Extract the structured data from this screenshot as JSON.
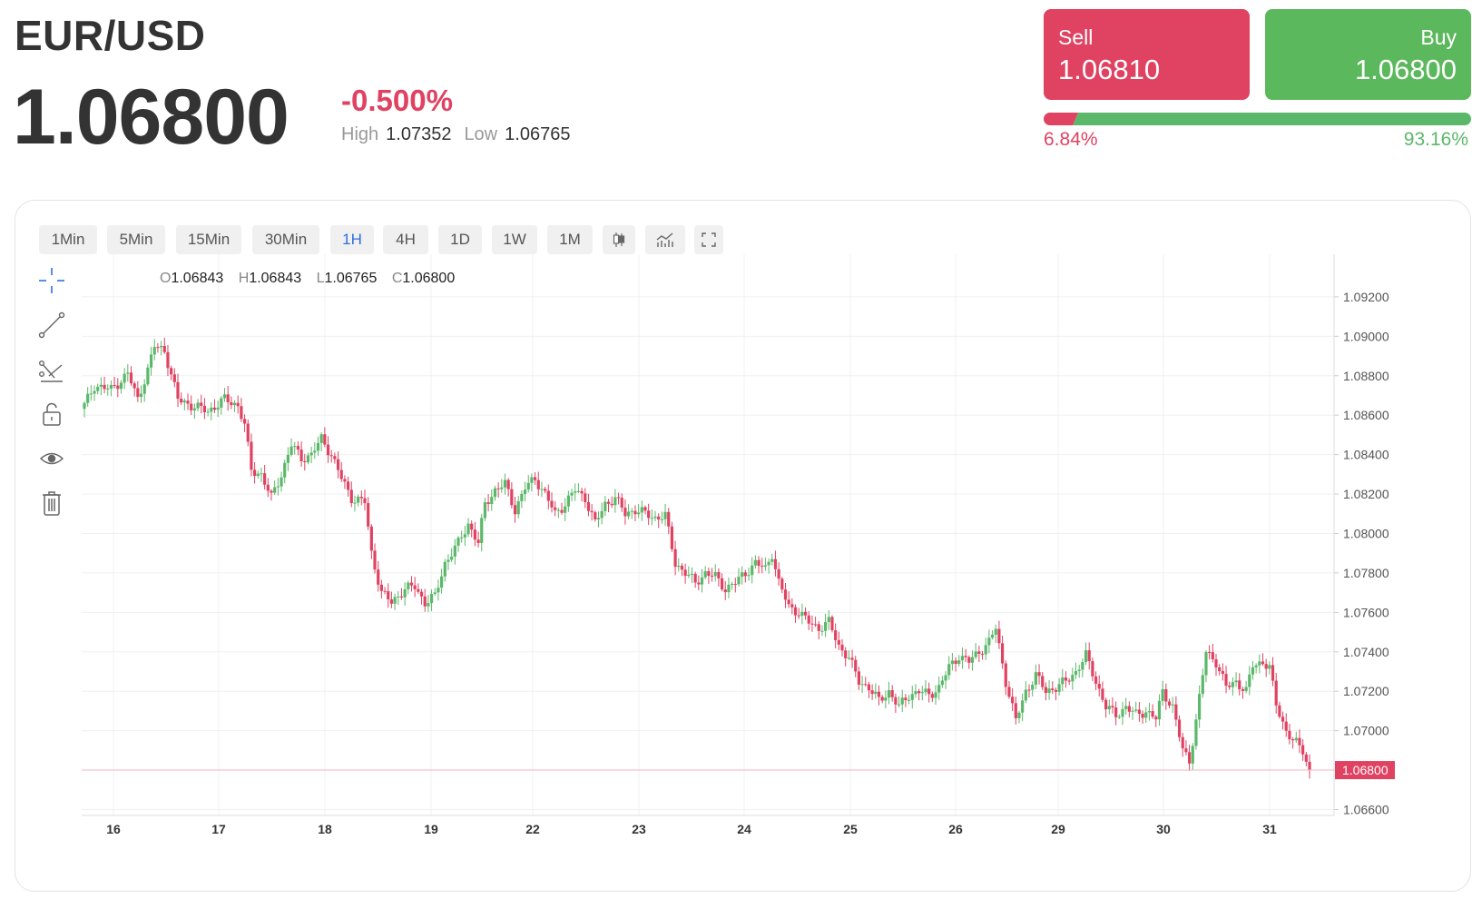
{
  "header": {
    "pair": "EUR/USD",
    "price": "1.06800",
    "change": "-0.500%",
    "high_label": "High",
    "high": "1.07352",
    "low_label": "Low",
    "low": "1.06765"
  },
  "trade": {
    "sell_label": "Sell",
    "sell_price": "1.06810",
    "buy_label": "Buy",
    "buy_price": "1.06800",
    "sell_pct": "6.84%",
    "buy_pct": "93.16%",
    "sell_fraction": 0.0684,
    "buy_fraction": 0.9316
  },
  "colors": {
    "down": "#e04262",
    "up": "#5bb86a",
    "sell_button": "#e04262",
    "buy_button": "#5cb85c",
    "active_interval": "#2e6fe0"
  },
  "toolbar": {
    "intervals": [
      "1Min",
      "5Min",
      "15Min",
      "30Min",
      "1H",
      "4H",
      "1D",
      "1W",
      "1M"
    ],
    "active_interval": "1H",
    "icons": [
      "candlestick-icon",
      "chart-indicators-icon",
      "fullscreen-icon"
    ]
  },
  "drawing_tools": [
    "crosshair-icon",
    "trendline-icon",
    "fib-tool-icon",
    "lock-icon",
    "eye-icon",
    "trash-icon"
  ],
  "ohlc": {
    "o_label": "O",
    "o": "1.06843",
    "h_label": "H",
    "h": "1.06843",
    "l_label": "L",
    "l": "1.06765",
    "c_label": "C",
    "c": "1.06800"
  },
  "chart_data": {
    "type": "candlestick",
    "ylim": [
      1.0657,
      1.0937
    ],
    "yticks": [
      "1.06600",
      "1.06800",
      "1.07000",
      "1.07200",
      "1.07400",
      "1.07600",
      "1.07800",
      "1.08000",
      "1.08200",
      "1.08400",
      "1.08600",
      "1.08800",
      "1.09000",
      "1.09200"
    ],
    "xticks": [
      "16",
      "17",
      "18",
      "19",
      "22",
      "23",
      "24",
      "25",
      "26",
      "29",
      "30",
      "31"
    ],
    "last_price_label": "1.06800",
    "last_price": 1.068,
    "grid": true,
    "waypoints": [
      [
        0,
        1.0865
      ],
      [
        3,
        1.0875
      ],
      [
        8,
        1.0873
      ],
      [
        13,
        1.0881
      ],
      [
        16,
        1.0868
      ],
      [
        19,
        1.0883
      ],
      [
        21,
        1.0895
      ],
      [
        24,
        1.0893
      ],
      [
        28,
        1.0868
      ],
      [
        32,
        1.0865
      ],
      [
        37,
        1.0862
      ],
      [
        42,
        1.0868
      ],
      [
        46,
        1.0865
      ],
      [
        48,
        1.0855
      ],
      [
        50,
        1.0832
      ],
      [
        53,
        1.083
      ],
      [
        56,
        1.0818
      ],
      [
        59,
        1.083
      ],
      [
        62,
        1.0845
      ],
      [
        65,
        1.0838
      ],
      [
        68,
        1.084
      ],
      [
        71,
        1.0848
      ],
      [
        74,
        1.084
      ],
      [
        77,
        1.0828
      ],
      [
        80,
        1.0818
      ],
      [
        84,
        1.0816
      ],
      [
        86,
        1.079
      ],
      [
        89,
        1.077
      ],
      [
        92,
        1.0765
      ],
      [
        96,
        1.0772
      ],
      [
        99,
        1.0773
      ],
      [
        102,
        1.0765
      ],
      [
        105,
        1.0768
      ],
      [
        108,
        1.0785
      ],
      [
        112,
        1.0795
      ],
      [
        115,
        1.0805
      ],
      [
        118,
        1.0795
      ],
      [
        120,
        1.0815
      ],
      [
        123,
        1.0822
      ],
      [
        126,
        1.0825
      ],
      [
        129,
        1.0812
      ],
      [
        132,
        1.0823
      ],
      [
        135,
        1.0828
      ],
      [
        138,
        1.082
      ],
      [
        141,
        1.081
      ],
      [
        144,
        1.0815
      ],
      [
        147,
        1.0822
      ],
      [
        150,
        1.0818
      ],
      [
        153,
        1.0805
      ],
      [
        156,
        1.0815
      ],
      [
        159,
        1.0818
      ],
      [
        162,
        1.081
      ],
      [
        165,
        1.0812
      ],
      [
        168,
        1.081
      ],
      [
        171,
        1.0808
      ],
      [
        174,
        1.0809
      ],
      [
        177,
        1.0785
      ],
      [
        180,
        1.078
      ],
      [
        183,
        1.0775
      ],
      [
        186,
        1.078
      ],
      [
        189,
        1.0778
      ],
      [
        192,
        1.0772
      ],
      [
        195,
        1.0775
      ],
      [
        198,
        1.078
      ],
      [
        201,
        1.0785
      ],
      [
        204,
        1.0782
      ],
      [
        206,
        1.079
      ],
      [
        208,
        1.0775
      ],
      [
        211,
        1.0763
      ],
      [
        214,
        1.076
      ],
      [
        217,
        1.0755
      ],
      [
        220,
        1.0752
      ],
      [
        223,
        1.0755
      ],
      [
        226,
        1.0743
      ],
      [
        229,
        1.0737
      ],
      [
        232,
        1.0725
      ],
      [
        235,
        1.0722
      ],
      [
        238,
        1.0715
      ],
      [
        241,
        1.072
      ],
      [
        244,
        1.0712
      ],
      [
        247,
        1.0718
      ],
      [
        250,
        1.072
      ],
      [
        253,
        1.0718
      ],
      [
        256,
        1.0722
      ],
      [
        259,
        1.0732
      ],
      [
        262,
        1.0738
      ],
      [
        265,
        1.0735
      ],
      [
        268,
        1.074
      ],
      [
        271,
        1.0745
      ],
      [
        273,
        1.0752
      ],
      [
        276,
        1.0725
      ],
      [
        279,
        1.0705
      ],
      [
        282,
        1.072
      ],
      [
        285,
        1.0728
      ],
      [
        288,
        1.072
      ],
      [
        291,
        1.0722
      ],
      [
        294,
        1.0725
      ],
      [
        297,
        1.073
      ],
      [
        300,
        1.0738
      ],
      [
        303,
        1.0725
      ],
      [
        306,
        1.0712
      ],
      [
        309,
        1.0708
      ],
      [
        312,
        1.0712
      ],
      [
        315,
        1.0708
      ],
      [
        318,
        1.071
      ],
      [
        321,
        1.0706
      ],
      [
        323,
        1.072
      ],
      [
        326,
        1.0712
      ],
      [
        329,
        1.069
      ],
      [
        331,
        1.0685
      ],
      [
        333,
        1.0705
      ],
      [
        336,
        1.074
      ],
      [
        339,
        1.0735
      ],
      [
        342,
        1.0722
      ],
      [
        345,
        1.0725
      ],
      [
        348,
        1.072
      ],
      [
        350,
        1.0733
      ],
      [
        353,
        1.0735
      ],
      [
        355,
        1.0732
      ],
      [
        357,
        1.0713
      ],
      [
        360,
        1.07
      ],
      [
        362,
        1.0695
      ],
      [
        365,
        1.069
      ],
      [
        367,
        1.068
      ]
    ]
  }
}
